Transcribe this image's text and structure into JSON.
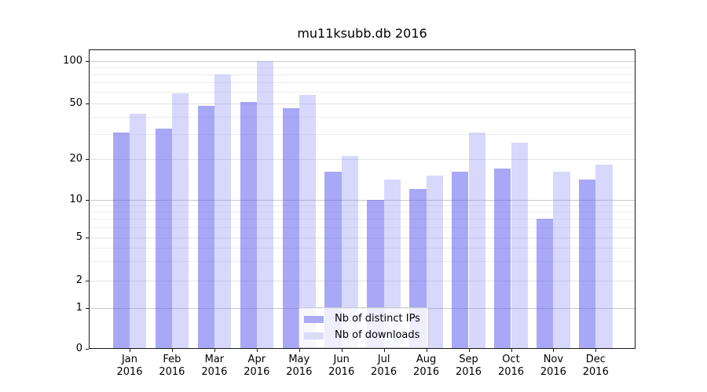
{
  "figure": {
    "background": "#ffffff"
  },
  "chart_data": {
    "type": "bar",
    "title": "mu11ksubb.db 2016",
    "x": [
      "Jan 2016",
      "Feb 2016",
      "Mar 2016",
      "Apr 2016",
      "May 2016",
      "Jun 2016",
      "Jul 2016",
      "Aug 2016",
      "Sep 2016",
      "Oct 2016",
      "Nov 2016",
      "Dec 2016"
    ],
    "months": [
      "Jan",
      "Feb",
      "Mar",
      "Apr",
      "May",
      "Jun",
      "Jul",
      "Aug",
      "Sep",
      "Oct",
      "Nov",
      "Dec"
    ],
    "year_label": "2016",
    "series": [
      {
        "name": "Nb of distinct IPs",
        "values": [
          31,
          33,
          48,
          51,
          46,
          16,
          10,
          12,
          16,
          17,
          7,
          14
        ],
        "fill": "rgba(88,88,240,0.52)",
        "legend_swatch": "#a9a9f6"
      },
      {
        "name": "Nb of downloads",
        "values": [
          42,
          59,
          80,
          100,
          57,
          21,
          14,
          15,
          31,
          26,
          16,
          18
        ],
        "fill": "rgba(120,120,245,0.29)",
        "legend_swatch": "#dadaf9"
      }
    ],
    "yscale": "symlog-like (log above 1, linear 0-1)",
    "ylim": [
      0,
      120
    ],
    "yticks": [
      100,
      50,
      20,
      10,
      5,
      2,
      1,
      0
    ],
    "major_gridline_values": [
      100,
      10,
      1
    ],
    "labeled_minor_gridline_values": [
      50,
      20,
      5,
      2
    ],
    "minor_gridline_values": [
      90,
      80,
      70,
      60,
      40,
      30,
      9,
      8,
      7,
      6,
      4,
      3
    ],
    "grid": true,
    "legend": {
      "position": "lower center"
    },
    "colors": {
      "grid_major": "#cbcbcb",
      "grid_labeled_minor": "#e3e3e3",
      "grid_minor": "#eeeeee",
      "axis": "#1a1a1a",
      "text": "#000000"
    },
    "scale_anchors": [
      [
        0,
        1.0
      ],
      [
        1,
        0.8626
      ],
      [
        2,
        0.7723
      ],
      [
        5,
        0.6269
      ],
      [
        10,
        0.5013
      ],
      [
        20,
        0.3652
      ],
      [
        50,
        0.1793
      ],
      [
        100,
        0.0379
      ]
    ]
  }
}
